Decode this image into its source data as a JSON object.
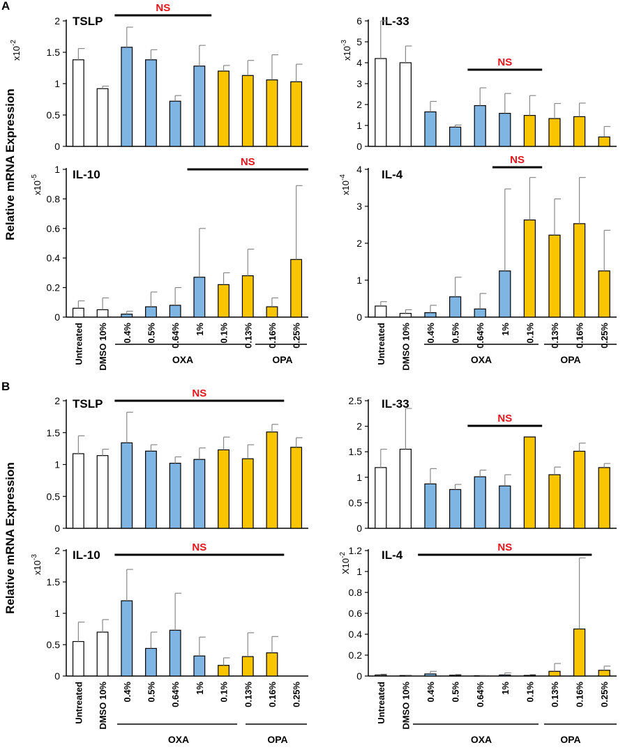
{
  "colors": {
    "untreated": "#ffffff",
    "oxa": "#7fb5e3",
    "opa": "#f8c500",
    "outline": "#000000",
    "ns": "#e8141c",
    "error": "#888888"
  },
  "figure": {
    "y_axis_label": "Relative mRNA Expression",
    "categories": [
      "Untreated",
      "DMSO 10%",
      "0.4%",
      "0.5%",
      "0.64%",
      "1%",
      "0.1%",
      "0.13%",
      "0.16%",
      "0.25%"
    ],
    "bar_groups": [
      "untreated",
      "untreated",
      "oxa",
      "oxa",
      "oxa",
      "oxa",
      "opa",
      "opa",
      "opa",
      "opa"
    ],
    "group_labels": [
      "OXA",
      "OPA"
    ]
  },
  "panels": [
    {
      "letter": "A",
      "charts": [
        {
          "title": "TSLP",
          "scale_base": "x10",
          "scale_exp": "-2",
          "ylim": [
            0,
            2
          ],
          "ticks": [
            "0",
            "0.5",
            "1",
            "1.5",
            "2"
          ],
          "values": [
            1.38,
            0.92,
            1.58,
            1.38,
            0.72,
            1.28,
            1.2,
            1.13,
            1.06,
            1.03
          ],
          "errors": [
            0.18,
            0.04,
            0.32,
            0.16,
            0.09,
            0.33,
            0.09,
            0.24,
            0.4,
            0.28
          ],
          "ns_label": "NS",
          "ns_span": [
            2,
            5
          ]
        },
        {
          "title": "IL-33",
          "scale_base": "x10",
          "scale_exp": "-3",
          "ylim": [
            0,
            6
          ],
          "ticks": [
            "0",
            "1",
            "2",
            "3",
            "4",
            "5",
            "6"
          ],
          "values": [
            4.2,
            4.0,
            1.65,
            0.92,
            1.95,
            1.58,
            1.48,
            1.33,
            1.42,
            0.45
          ],
          "errors": [
            1.8,
            0.8,
            0.5,
            0.1,
            0.85,
            0.95,
            0.95,
            0.72,
            0.65,
            0.5
          ],
          "ns_label": "NS",
          "ns_span": [
            4,
            6
          ]
        },
        {
          "title": "IL-10",
          "scale_base": "x10",
          "scale_exp": "-5",
          "ylim": [
            0,
            1
          ],
          "ticks": [
            "0",
            "0.2",
            "0.4",
            "0.6",
            "0.8",
            "1"
          ],
          "values": [
            0.06,
            0.05,
            0.02,
            0.07,
            0.08,
            0.27,
            0.22,
            0.28,
            0.07,
            0.39
          ],
          "errors": [
            0.05,
            0.08,
            0.02,
            0.1,
            0.12,
            0.33,
            0.08,
            0.18,
            0.06,
            0.5
          ],
          "ns_label": "NS",
          "ns_span": [
            5,
            9
          ]
        },
        {
          "title": "IL-4",
          "scale_base": "x10",
          "scale_exp": "-4",
          "ylim": [
            0,
            4
          ],
          "ticks": [
            "0",
            "1",
            "2",
            "3",
            "4"
          ],
          "values": [
            0.3,
            0.1,
            0.12,
            0.55,
            0.22,
            1.25,
            2.63,
            2.22,
            2.53,
            1.25
          ],
          "errors": [
            0.12,
            0.1,
            0.2,
            0.53,
            0.42,
            2.22,
            1.15,
            0.98,
            1.25,
            1.1
          ],
          "ns_label": "NS",
          "ns_span": [
            5,
            6
          ]
        }
      ]
    },
    {
      "letter": "B",
      "charts": [
        {
          "title": "TSLP",
          "scale_base": "",
          "scale_exp": "",
          "ylim": [
            0,
            2
          ],
          "ticks": [
            "0",
            "0.5",
            "1",
            "1.5",
            "2"
          ],
          "values": [
            1.17,
            1.14,
            1.34,
            1.21,
            1.02,
            1.08,
            1.23,
            1.09,
            1.51,
            1.27
          ],
          "errors": [
            0.28,
            0.1,
            0.48,
            0.1,
            0.1,
            0.18,
            0.2,
            0.22,
            0.12,
            0.15
          ],
          "ns_label": "NS",
          "ns_span": [
            2,
            8
          ]
        },
        {
          "title": "IL-33",
          "scale_base": "",
          "scale_exp": "",
          "ylim": [
            0,
            2.5
          ],
          "ticks": [
            "0",
            "0.5",
            "1",
            "1.5",
            "2",
            "2.5"
          ],
          "values": [
            1.19,
            1.55,
            0.87,
            0.76,
            1.01,
            0.83,
            1.79,
            1.05,
            1.51,
            1.19
          ],
          "errors": [
            0.36,
            0.8,
            0.3,
            0.1,
            0.13,
            0.22,
            0.0,
            0.15,
            0.16,
            0.08
          ],
          "ns_label": "NS",
          "ns_span": [
            4,
            6
          ]
        },
        {
          "title": "IL-10",
          "scale_base": "x10",
          "scale_exp": "-3",
          "ylim": [
            0,
            2
          ],
          "ticks": [
            "0",
            "0.5",
            "1",
            "1.5",
            "2"
          ],
          "values": [
            0.55,
            0.7,
            1.2,
            0.44,
            0.73,
            0.32,
            0.17,
            0.31,
            0.37,
            0
          ],
          "errors": [
            0.31,
            0.2,
            0.5,
            0.26,
            0.59,
            0.3,
            0.12,
            0.38,
            0.26,
            0
          ],
          "ns_label": "NS",
          "ns_span": [
            2,
            8
          ]
        },
        {
          "title": "IL-4",
          "scale_base": "X10",
          "scale_exp": "-2",
          "ylim": [
            0,
            1.2
          ],
          "ticks": [
            "0",
            "0.2",
            "0.4",
            "0.6",
            "0.8",
            "1",
            "1.2"
          ],
          "values": [
            0.01,
            0.005,
            0.02,
            0.008,
            0.003,
            0.01,
            0.006,
            0.045,
            0.45,
            0.055
          ],
          "errors": [
            0.008,
            0.003,
            0.025,
            0.007,
            0.003,
            0.02,
            0.008,
            0.075,
            0.68,
            0.04
          ],
          "ns_label": "NS",
          "ns_span": [
            2,
            8
          ]
        }
      ]
    }
  ],
  "chart_data": [
    {
      "type": "bar",
      "title": "A TSLP (x10^-2)",
      "categories": [
        "Untreated",
        "DMSO 10%",
        "0.4%",
        "0.5%",
        "0.64%",
        "1%",
        "0.1%",
        "0.13%",
        "0.16%",
        "0.25%"
      ],
      "values": [
        1.38,
        0.92,
        1.58,
        1.38,
        0.72,
        1.28,
        1.2,
        1.13,
        1.06,
        1.03
      ],
      "errors": [
        0.18,
        0.04,
        0.32,
        0.16,
        0.09,
        0.33,
        0.09,
        0.24,
        0.4,
        0.28
      ],
      "ylabel": "Relative mRNA Expression",
      "ylim": [
        0,
        2
      ]
    },
    {
      "type": "bar",
      "title": "A IL-33 (x10^-3)",
      "categories": [
        "Untreated",
        "DMSO 10%",
        "0.4%",
        "0.5%",
        "0.64%",
        "1%",
        "0.1%",
        "0.13%",
        "0.16%",
        "0.25%"
      ],
      "values": [
        4.2,
        4.0,
        1.65,
        0.92,
        1.95,
        1.58,
        1.48,
        1.33,
        1.42,
        0.45
      ],
      "errors": [
        1.8,
        0.8,
        0.5,
        0.1,
        0.85,
        0.95,
        0.95,
        0.72,
        0.65,
        0.5
      ],
      "ylim": [
        0,
        6
      ]
    },
    {
      "type": "bar",
      "title": "A IL-10 (x10^-5)",
      "categories": [
        "Untreated",
        "DMSO 10%",
        "0.4%",
        "0.5%",
        "0.64%",
        "1%",
        "0.1%",
        "0.13%",
        "0.16%",
        "0.25%"
      ],
      "values": [
        0.06,
        0.05,
        0.02,
        0.07,
        0.08,
        0.27,
        0.22,
        0.28,
        0.07,
        0.39
      ],
      "errors": [
        0.05,
        0.08,
        0.02,
        0.1,
        0.12,
        0.33,
        0.08,
        0.18,
        0.06,
        0.5
      ],
      "ylim": [
        0,
        1
      ]
    },
    {
      "type": "bar",
      "title": "A IL-4 (x10^-4)",
      "categories": [
        "Untreated",
        "DMSO 10%",
        "0.4%",
        "0.5%",
        "0.64%",
        "1%",
        "0.1%",
        "0.13%",
        "0.16%",
        "0.25%"
      ],
      "values": [
        0.3,
        0.1,
        0.12,
        0.55,
        0.22,
        1.25,
        2.63,
        2.22,
        2.53,
        1.25
      ],
      "errors": [
        0.12,
        0.1,
        0.2,
        0.53,
        0.42,
        2.22,
        1.15,
        0.98,
        1.25,
        1.1
      ],
      "ylim": [
        0,
        4
      ]
    },
    {
      "type": "bar",
      "title": "B TSLP",
      "categories": [
        "Untreated",
        "DMSO 10%",
        "0.4%",
        "0.5%",
        "0.64%",
        "1%",
        "0.1%",
        "0.13%",
        "0.16%",
        "0.25%"
      ],
      "values": [
        1.17,
        1.14,
        1.34,
        1.21,
        1.02,
        1.08,
        1.23,
        1.09,
        1.51,
        1.27
      ],
      "errors": [
        0.28,
        0.1,
        0.48,
        0.1,
        0.1,
        0.18,
        0.2,
        0.22,
        0.12,
        0.15
      ],
      "ylabel": "Relative mRNA Expression",
      "ylim": [
        0,
        2
      ]
    },
    {
      "type": "bar",
      "title": "B IL-33",
      "categories": [
        "Untreated",
        "DMSO 10%",
        "0.4%",
        "0.5%",
        "0.64%",
        "1%",
        "0.1%",
        "0.13%",
        "0.16%",
        "0.25%"
      ],
      "values": [
        1.19,
        1.55,
        0.87,
        0.76,
        1.01,
        0.83,
        1.79,
        1.05,
        1.51,
        1.19
      ],
      "errors": [
        0.36,
        0.8,
        0.3,
        0.1,
        0.13,
        0.22,
        0.0,
        0.15,
        0.16,
        0.08
      ],
      "ylim": [
        0,
        2.5
      ]
    },
    {
      "type": "bar",
      "title": "B IL-10 (x10^-3)",
      "categories": [
        "Untreated",
        "DMSO 10%",
        "0.4%",
        "0.5%",
        "0.64%",
        "1%",
        "0.1%",
        "0.13%",
        "0.16%",
        "0.25%"
      ],
      "values": [
        0.55,
        0.7,
        1.2,
        0.44,
        0.73,
        0.32,
        0.17,
        0.31,
        0.37,
        0
      ],
      "errors": [
        0.31,
        0.2,
        0.5,
        0.26,
        0.59,
        0.3,
        0.12,
        0.38,
        0.26,
        0
      ],
      "ylim": [
        0,
        2
      ]
    },
    {
      "type": "bar",
      "title": "B IL-4 (X10^-2)",
      "categories": [
        "Untreated",
        "DMSO 10%",
        "0.4%",
        "0.5%",
        "0.64%",
        "1%",
        "0.1%",
        "0.13%",
        "0.16%",
        "0.25%"
      ],
      "values": [
        0.01,
        0.005,
        0.02,
        0.008,
        0.003,
        0.01,
        0.006,
        0.045,
        0.45,
        0.055
      ],
      "errors": [
        0.008,
        0.003,
        0.025,
        0.007,
        0.003,
        0.02,
        0.008,
        0.075,
        0.68,
        0.04
      ],
      "ylim": [
        0,
        1.2
      ]
    }
  ]
}
